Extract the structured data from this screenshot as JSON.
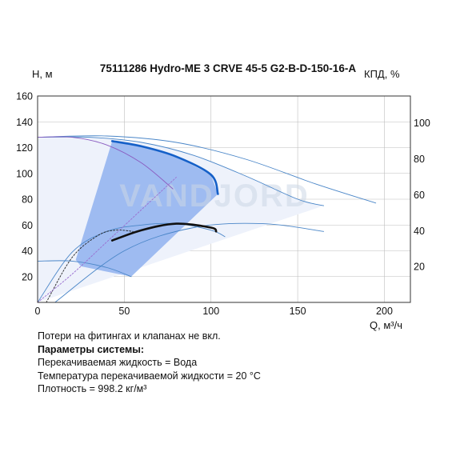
{
  "chart_data": {
    "type": "line",
    "title": "75111286 Hydro-ME 3 CRVE 45-5 G2-B-D-150-16-A",
    "ylabel": "H, м",
    "ylabel_right": "КПД, %",
    "xlabel": "Q, м³/ч",
    "xlim": [
      0,
      215
    ],
    "ylim": [
      0,
      160
    ],
    "y2lim": [
      0,
      115
    ],
    "x_ticks": [
      0,
      50,
      100,
      150,
      200
    ],
    "y_ticks": [
      20,
      40,
      60,
      80,
      100,
      120,
      140,
      160
    ],
    "y2_ticks": [
      20,
      40,
      60,
      80,
      100
    ],
    "watermark": "VANDJORD",
    "series": [
      {
        "role": "head-curve",
        "color": "#4a86c8",
        "points": [
          [
            0,
            128
          ],
          [
            30,
            128
          ],
          [
            60,
            124
          ],
          [
            90,
            114
          ],
          [
            120,
            98
          ],
          [
            150,
            80
          ],
          [
            165,
            75
          ]
        ]
      },
      {
        "role": "head-curve",
        "color": "#4a86c8",
        "points": [
          [
            0,
            128
          ],
          [
            40,
            129
          ],
          [
            80,
            124
          ],
          [
            120,
            111
          ],
          [
            160,
            92
          ],
          [
            195,
            77
          ]
        ]
      },
      {
        "role": "head-curve",
        "color": "#8a5cc0",
        "points": [
          [
            0,
            128
          ],
          [
            20,
            128
          ],
          [
            40,
            122
          ],
          [
            60,
            108
          ],
          [
            78,
            88
          ]
        ]
      },
      {
        "role": "head-curve",
        "color": "#4a86c8",
        "points": [
          [
            0,
            32
          ],
          [
            20,
            32
          ],
          [
            40,
            27
          ],
          [
            54,
            20
          ]
        ]
      },
      {
        "role": "duty-head",
        "color": "#1560c8",
        "points": [
          [
            43,
            125
          ],
          [
            60,
            121
          ],
          [
            80,
            113
          ],
          [
            100,
            99
          ],
          [
            104,
            84
          ]
        ]
      },
      {
        "role": "efficiency",
        "color": "#4a86c8",
        "points": [
          [
            0,
            0
          ],
          [
            20,
            39
          ],
          [
            40,
            55
          ],
          [
            60,
            60
          ],
          [
            80,
            61
          ],
          [
            100,
            56
          ],
          [
            108,
            51
          ]
        ]
      },
      {
        "role": "efficiency",
        "color": "#4a86c8",
        "points": [
          [
            10,
            0
          ],
          [
            50,
            40
          ],
          [
            90,
            58
          ],
          [
            130,
            61
          ],
          [
            165,
            55
          ]
        ]
      },
      {
        "role": "efficiency",
        "color": "#222222",
        "points": [
          [
            5,
            0
          ],
          [
            20,
            35
          ],
          [
            35,
            52
          ],
          [
            45,
            56
          ],
          [
            55,
            55
          ]
        ]
      },
      {
        "role": "duty-efficiency",
        "color": "#111111",
        "points": [
          [
            43,
            48
          ],
          [
            60,
            56
          ],
          [
            80,
            61
          ],
          [
            100,
            58
          ],
          [
            103,
            55
          ]
        ]
      },
      {
        "role": "system-curve",
        "color": "#9a6fd0",
        "points": [
          [
            0,
            0
          ],
          [
            20,
            22
          ],
          [
            40,
            47
          ],
          [
            60,
            72
          ],
          [
            80,
            97
          ]
        ]
      }
    ],
    "operating_area": {
      "color": "#8fb2ee",
      "points": [
        [
          43,
          125
        ],
        [
          60,
          121
        ],
        [
          80,
          113
        ],
        [
          100,
          99
        ],
        [
          104,
          84
        ],
        [
          54,
          20
        ],
        [
          25,
          28
        ],
        [
          22,
          33
        ]
      ]
    }
  },
  "notes": {
    "line1": "Потери на фитингах и клапанах не вкл.",
    "heading": "Параметры системы:",
    "line2": "Перекачиваемая жидкость = Вода",
    "line3": "Температура перекачиваемой жидкости = 20 °C",
    "line4": "Плотность = 998.2 кг/м³"
  }
}
